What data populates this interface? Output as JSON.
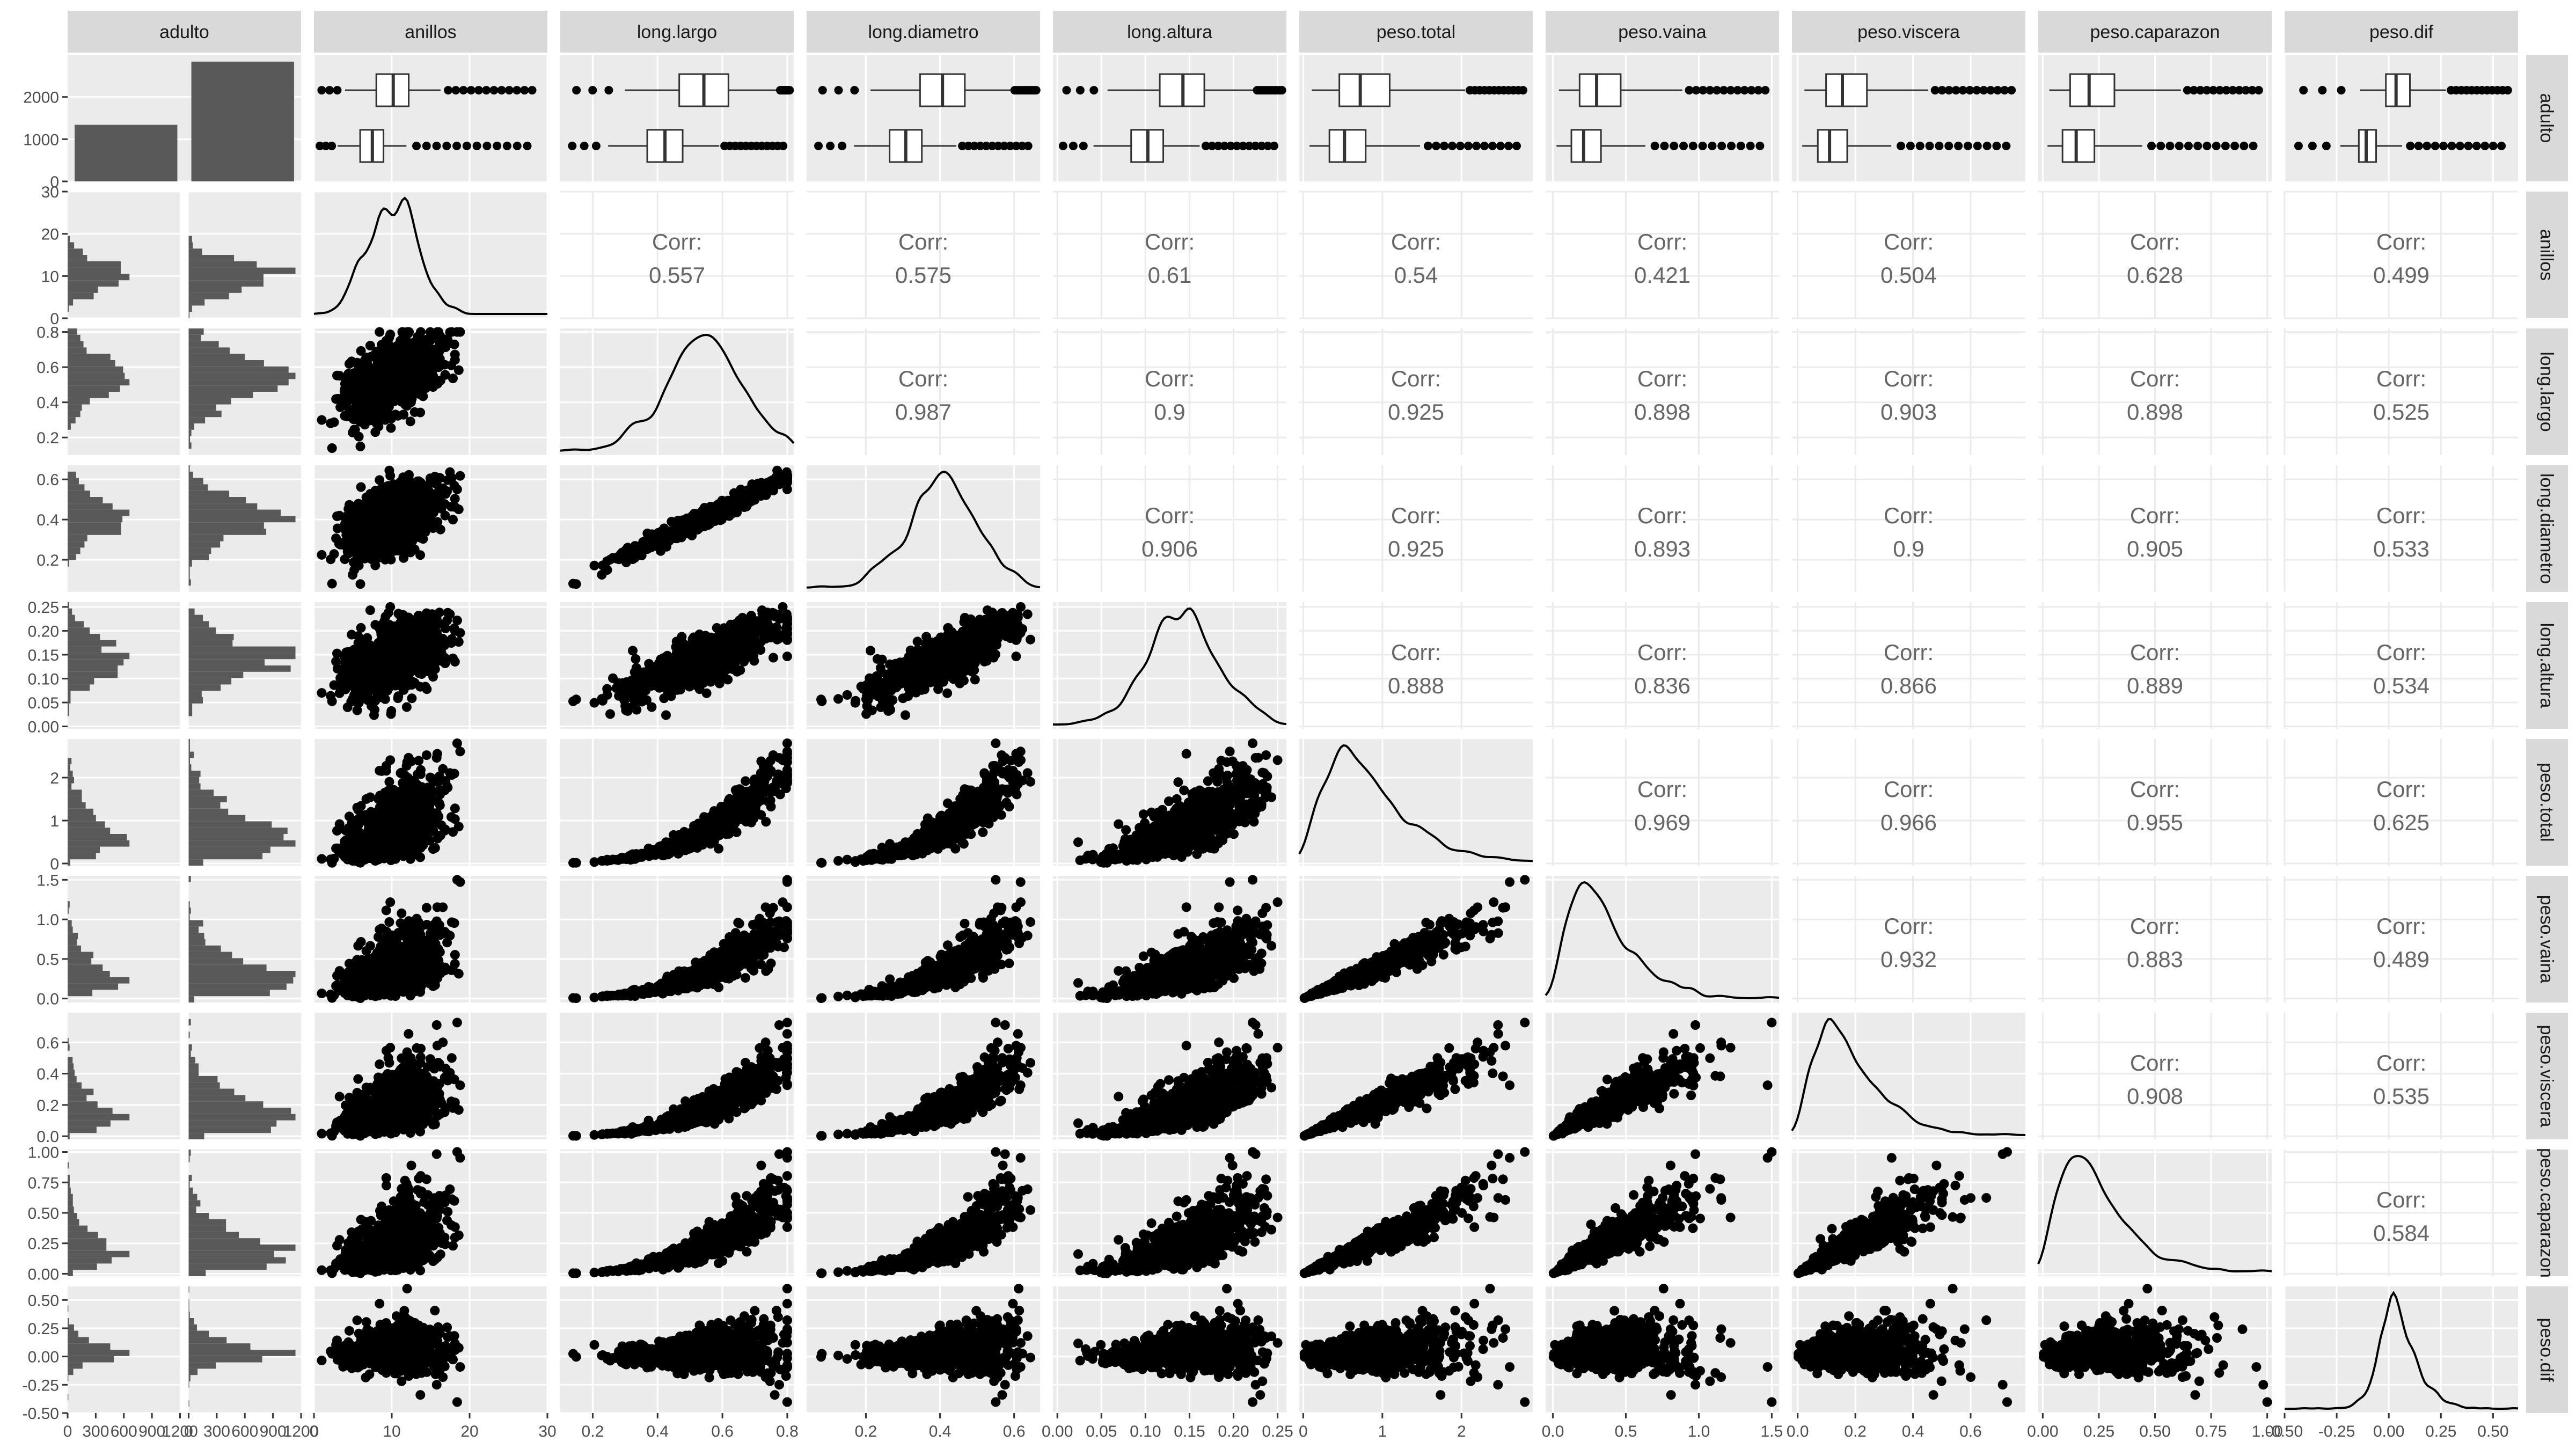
{
  "chart_data": {
    "type": "scatter",
    "variables": [
      "adulto",
      "anillos",
      "long.largo",
      "long.diametro",
      "long.altura",
      "peso.total",
      "peso.vaina",
      "peso.viscera",
      "peso.caparazon",
      "peso.dif"
    ],
    "corr_label": "Corr:",
    "correlations": [
      {
        "row": "anillos",
        "col": "long.largo",
        "value": "0.557"
      },
      {
        "row": "anillos",
        "col": "long.diametro",
        "value": "0.575"
      },
      {
        "row": "anillos",
        "col": "long.altura",
        "value": "0.61"
      },
      {
        "row": "anillos",
        "col": "peso.total",
        "value": "0.54"
      },
      {
        "row": "anillos",
        "col": "peso.vaina",
        "value": "0.421"
      },
      {
        "row": "anillos",
        "col": "peso.viscera",
        "value": "0.504"
      },
      {
        "row": "anillos",
        "col": "peso.caparazon",
        "value": "0.628"
      },
      {
        "row": "anillos",
        "col": "peso.dif",
        "value": "0.499"
      },
      {
        "row": "long.largo",
        "col": "long.diametro",
        "value": "0.987"
      },
      {
        "row": "long.largo",
        "col": "long.altura",
        "value": "0.9"
      },
      {
        "row": "long.largo",
        "col": "peso.total",
        "value": "0.925"
      },
      {
        "row": "long.largo",
        "col": "peso.vaina",
        "value": "0.898"
      },
      {
        "row": "long.largo",
        "col": "peso.viscera",
        "value": "0.903"
      },
      {
        "row": "long.largo",
        "col": "peso.caparazon",
        "value": "0.898"
      },
      {
        "row": "long.largo",
        "col": "peso.dif",
        "value": "0.525"
      },
      {
        "row": "long.diametro",
        "col": "long.altura",
        "value": "0.906"
      },
      {
        "row": "long.diametro",
        "col": "peso.total",
        "value": "0.925"
      },
      {
        "row": "long.diametro",
        "col": "peso.vaina",
        "value": "0.893"
      },
      {
        "row": "long.diametro",
        "col": "peso.viscera",
        "value": "0.9"
      },
      {
        "row": "long.diametro",
        "col": "peso.caparazon",
        "value": "0.905"
      },
      {
        "row": "long.diametro",
        "col": "peso.dif",
        "value": "0.533"
      },
      {
        "row": "long.altura",
        "col": "peso.total",
        "value": "0.888"
      },
      {
        "row": "long.altura",
        "col": "peso.vaina",
        "value": "0.836"
      },
      {
        "row": "long.altura",
        "col": "peso.viscera",
        "value": "0.866"
      },
      {
        "row": "long.altura",
        "col": "peso.caparazon",
        "value": "0.889"
      },
      {
        "row": "long.altura",
        "col": "peso.dif",
        "value": "0.534"
      },
      {
        "row": "peso.total",
        "col": "peso.vaina",
        "value": "0.969"
      },
      {
        "row": "peso.total",
        "col": "peso.viscera",
        "value": "0.966"
      },
      {
        "row": "peso.total",
        "col": "peso.caparazon",
        "value": "0.955"
      },
      {
        "row": "peso.total",
        "col": "peso.dif",
        "value": "0.625"
      },
      {
        "row": "peso.vaina",
        "col": "peso.viscera",
        "value": "0.932"
      },
      {
        "row": "peso.vaina",
        "col": "peso.caparazon",
        "value": "0.883"
      },
      {
        "row": "peso.vaina",
        "col": "peso.dif",
        "value": "0.489"
      },
      {
        "row": "peso.viscera",
        "col": "peso.caparazon",
        "value": "0.908"
      },
      {
        "row": "peso.viscera",
        "col": "peso.dif",
        "value": "0.535"
      },
      {
        "row": "peso.caparazon",
        "col": "peso.dif",
        "value": "0.584"
      }
    ],
    "adulto_counts": [
      1340,
      2837
    ],
    "adulto_count_ticks": [
      "0",
      "1000",
      "2000"
    ],
    "adulto_axis_ticks": [
      "0",
      "300",
      "600",
      "900",
      "1200"
    ],
    "axes": {
      "anillos": {
        "range": [
          0,
          30
        ],
        "ticks": [
          "0",
          "10",
          "20",
          "30"
        ]
      },
      "long.largo": {
        "range": [
          0.1,
          0.82
        ],
        "ticks": [
          "0.2",
          "0.4",
          "0.6",
          "0.8"
        ]
      },
      "long.diametro": {
        "range": [
          0.04,
          0.67
        ],
        "ticks": [
          "0.2",
          "0.4",
          "0.6"
        ]
      },
      "long.altura": {
        "range": [
          -0.005,
          0.26
        ],
        "ticks": [
          "0.00",
          "0.05",
          "0.10",
          "0.15",
          "0.20",
          "0.25"
        ]
      },
      "peso.total": {
        "range": [
          -0.05,
          2.9
        ],
        "ticks": [
          "0",
          "1",
          "2"
        ]
      },
      "peso.vaina": {
        "range": [
          -0.05,
          1.55
        ],
        "ticks": [
          "0.0",
          "0.5",
          "1.0",
          "1.5"
        ]
      },
      "peso.viscera": {
        "range": [
          -0.02,
          0.79
        ],
        "ticks": [
          "0.0",
          "0.2",
          "0.4",
          "0.6"
        ]
      },
      "peso.caparazon": {
        "range": [
          -0.02,
          1.02
        ],
        "ticks": [
          "0.00",
          "0.25",
          "0.50",
          "0.75",
          "1.00"
        ]
      },
      "peso.dif": {
        "range": [
          -0.5,
          0.62
        ],
        "ticks": [
          "-0.50",
          "-0.25",
          "0.00",
          "0.25",
          "0.50"
        ]
      }
    },
    "grid": true,
    "colors": {
      "panel": "#ebebeb",
      "strip": "#d9d9d9",
      "grid": "#ffffff",
      "points": "#000000",
      "bars": "#595959",
      "corr_text": "#666666",
      "tick_text": "#4d4d4d"
    }
  }
}
